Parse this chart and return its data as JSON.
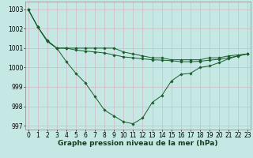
{
  "x_hours": [
    0,
    1,
    2,
    3,
    4,
    5,
    6,
    7,
    8,
    9,
    10,
    11,
    12,
    13,
    14,
    15,
    16,
    17,
    18,
    19,
    20,
    21,
    22,
    23
  ],
  "line1": [
    1003.0,
    1002.1,
    1001.4,
    1001.0,
    1001.0,
    1001.0,
    1001.0,
    1001.0,
    1001.0,
    1001.0,
    1000.8,
    1000.7,
    1000.6,
    1000.5,
    1000.5,
    1000.4,
    1000.4,
    1000.4,
    1000.4,
    1000.5,
    1000.5,
    1000.6,
    1000.65,
    1000.7
  ],
  "line2": [
    1003.0,
    1002.1,
    1001.35,
    1001.0,
    1001.0,
    1000.9,
    1000.85,
    1000.8,
    1000.75,
    1000.65,
    1000.55,
    1000.5,
    1000.45,
    1000.4,
    1000.38,
    1000.35,
    1000.3,
    1000.3,
    1000.32,
    1000.38,
    1000.42,
    1000.5,
    1000.6,
    1000.7
  ],
  "line3": [
    1003.0,
    1002.1,
    1001.35,
    1001.0,
    1000.3,
    999.7,
    999.2,
    998.5,
    997.8,
    997.5,
    997.2,
    997.1,
    997.4,
    998.2,
    998.55,
    999.3,
    999.65,
    999.7,
    1000.0,
    1000.08,
    1000.25,
    1000.45,
    1000.6,
    1000.7
  ],
  "bg_color": "#c5e8e5",
  "grid_color": "#d4b8c8",
  "line_color": "#1a5c2a",
  "marker": "D",
  "marker_size": 1.8,
  "xlabel": "Graphe pression niveau de la mer (hPa)",
  "ylim": [
    996.8,
    1003.4
  ],
  "yticks": [
    997,
    998,
    999,
    1000,
    1001,
    1002,
    1003
  ],
  "xticks": [
    0,
    1,
    2,
    3,
    4,
    5,
    6,
    7,
    8,
    9,
    10,
    11,
    12,
    13,
    14,
    15,
    16,
    17,
    18,
    19,
    20,
    21,
    22,
    23
  ],
  "xlabel_fontsize": 6.5,
  "tick_fontsize": 5.5,
  "lw": 0.7
}
